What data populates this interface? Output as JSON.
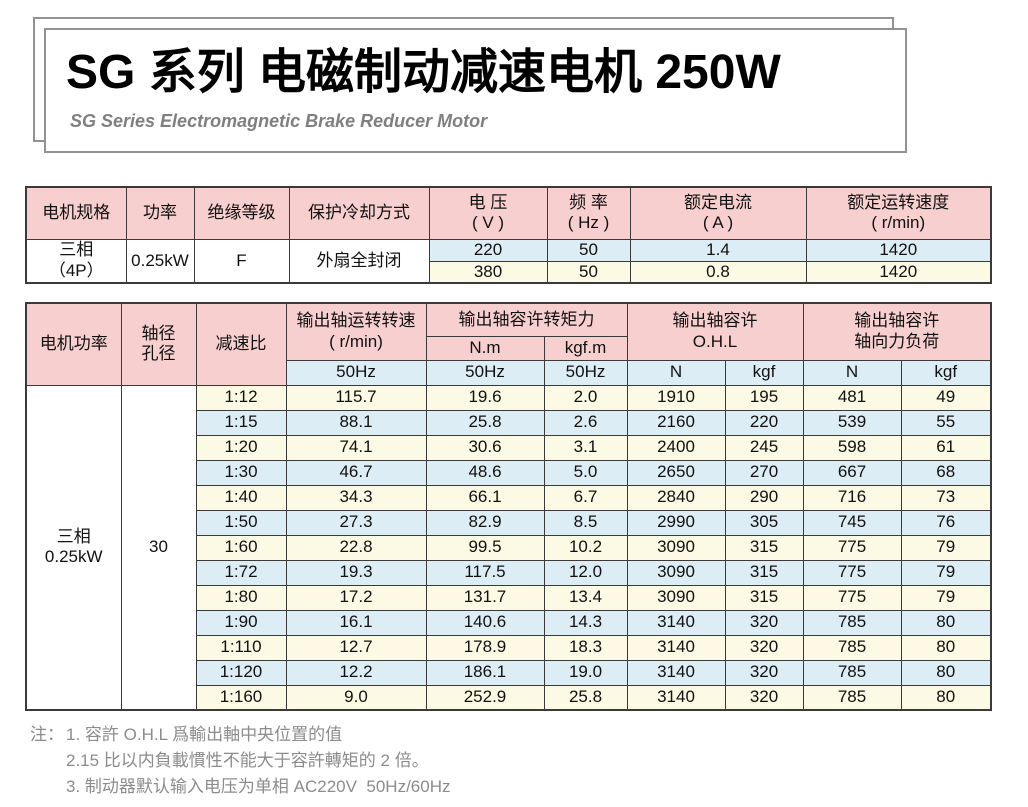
{
  "page": {
    "title": "SG 系列 电磁制动减速电机 250W",
    "subtitle": "SG Series Electromagnetic Brake Reducer Motor"
  },
  "colors": {
    "header_pink": "#f7cfcf",
    "row_blue": "#ddedf5",
    "row_cream": "#fcf9e4",
    "table_border": "#3a3a3a",
    "note_gray": "#8c8c8c",
    "frame_gray": "#929292"
  },
  "table1": {
    "headers": {
      "motor_spec": "电机规格",
      "power": "功率",
      "insulation_class": "绝缘等级",
      "protection_cooling": "保护冷却方式",
      "voltage_l1": "电 压",
      "voltage_l2": "( V )",
      "freq_l1": "频 率",
      "freq_l2": "( Hz )",
      "rated_current_l1": "额定电流",
      "rated_current_l2": "( A )",
      "rated_speed_l1": "额定运转速度",
      "rated_speed_l2": "( r/min)"
    },
    "body": {
      "motor_spec_l1": "三相",
      "motor_spec_l2": "（4P）",
      "power": "0.25kW",
      "insulation": "F",
      "cooling": "外扇全封闭",
      "rows": [
        {
          "voltage": "220",
          "freq": "50",
          "current": "1.4",
          "speed": "1420"
        },
        {
          "voltage": "380",
          "freq": "50",
          "current": "0.8",
          "speed": "1420"
        }
      ]
    }
  },
  "table2": {
    "headers": {
      "motor_power": "电机功率",
      "shaft_l1": "轴径",
      "shaft_l2": "孔径",
      "ratio": "减速比",
      "output_speed_l1": "输出轴运转转速",
      "output_speed_l2": "( r/min)",
      "torque_group": "输出轴容许转矩力",
      "nm": "N.m",
      "kgfm": "kgf.m",
      "ohl_l1": "输出轴容许",
      "ohl_l2": "O.H.L",
      "axial_l1": "输出轴容许",
      "axial_l2": "轴向力负荷",
      "hz": "50Hz",
      "n": "N",
      "kgf": "kgf"
    },
    "left": {
      "motor_power_l1": "三相",
      "motor_power_l2": "0.25kW",
      "shaft_diameter": "30"
    },
    "rows": [
      [
        "1:12",
        "115.7",
        "19.6",
        "2.0",
        "1910",
        "195",
        "481",
        "49"
      ],
      [
        "1:15",
        "88.1",
        "25.8",
        "2.6",
        "2160",
        "220",
        "539",
        "55"
      ],
      [
        "1:20",
        "74.1",
        "30.6",
        "3.1",
        "2400",
        "245",
        "598",
        "61"
      ],
      [
        "1:30",
        "46.7",
        "48.6",
        "5.0",
        "2650",
        "270",
        "667",
        "68"
      ],
      [
        "1:40",
        "34.3",
        "66.1",
        "6.7",
        "2840",
        "290",
        "716",
        "73"
      ],
      [
        "1:50",
        "27.3",
        "82.9",
        "8.5",
        "2990",
        "305",
        "745",
        "76"
      ],
      [
        "1:60",
        "22.8",
        "99.5",
        "10.2",
        "3090",
        "315",
        "775",
        "79"
      ],
      [
        "1:72",
        "19.3",
        "117.5",
        "12.0",
        "3090",
        "315",
        "775",
        "79"
      ],
      [
        "1:80",
        "17.2",
        "131.7",
        "13.4",
        "3090",
        "315",
        "775",
        "79"
      ],
      [
        "1:90",
        "16.1",
        "140.6",
        "14.3",
        "3140",
        "320",
        "785",
        "80"
      ],
      [
        "1:110",
        "12.7",
        "178.9",
        "18.3",
        "3140",
        "320",
        "785",
        "80"
      ],
      [
        "1:120",
        "12.2",
        "186.1",
        "19.0",
        "3140",
        "320",
        "785",
        "80"
      ],
      [
        "1:160",
        "9.0",
        "252.9",
        "25.8",
        "3140",
        "320",
        "785",
        "80"
      ]
    ]
  },
  "notes": {
    "label": "注：",
    "items": [
      "1. 容許 O.H.L 爲輸出軸中央位置的值",
      "2.15 比以内負載慣性不能大于容許轉矩的 2 倍。",
      "3. 制动器默认输入电压为单相 AC220V  50Hz/60Hz"
    ]
  }
}
